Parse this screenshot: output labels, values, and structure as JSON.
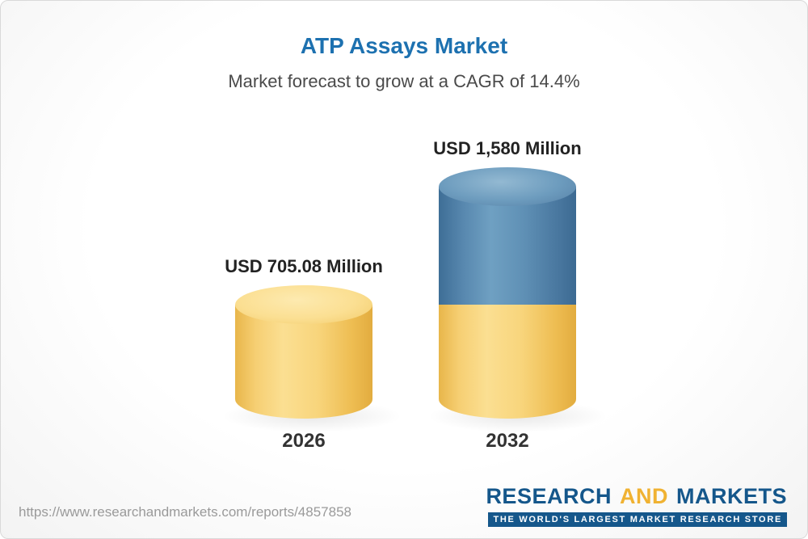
{
  "header": {
    "title": "ATP Assays Market",
    "subtitle": "Market forecast to grow at a CAGR of 14.4%"
  },
  "chart_data": {
    "type": "bar",
    "variant": "3d-cylinder",
    "title": "ATP Assays Market",
    "subtitle": "Market forecast to grow at a CAGR of 14.4%",
    "cagr_percent": 14.4,
    "categories": [
      "2026",
      "2032"
    ],
    "values": [
      705.08,
      1580
    ],
    "value_labels": [
      "USD 705.08 Million",
      "USD 1,580 Million"
    ],
    "unit": "USD Million",
    "ylim": [
      0,
      1580
    ],
    "grid": "off",
    "legend": "none",
    "colors": {
      "bar_2026": "#f6cf73",
      "bar_2032_base": "#f6cf73",
      "bar_2032_growth": "#5f90b5"
    }
  },
  "footer": {
    "url": "https://www.researchandmarkets.com/reports/4857858",
    "logo": {
      "research": "RESEARCH",
      "and": "AND",
      "markets": "MARKETS",
      "tagline": "THE WORLD'S LARGEST MARKET RESEARCH STORE"
    }
  }
}
